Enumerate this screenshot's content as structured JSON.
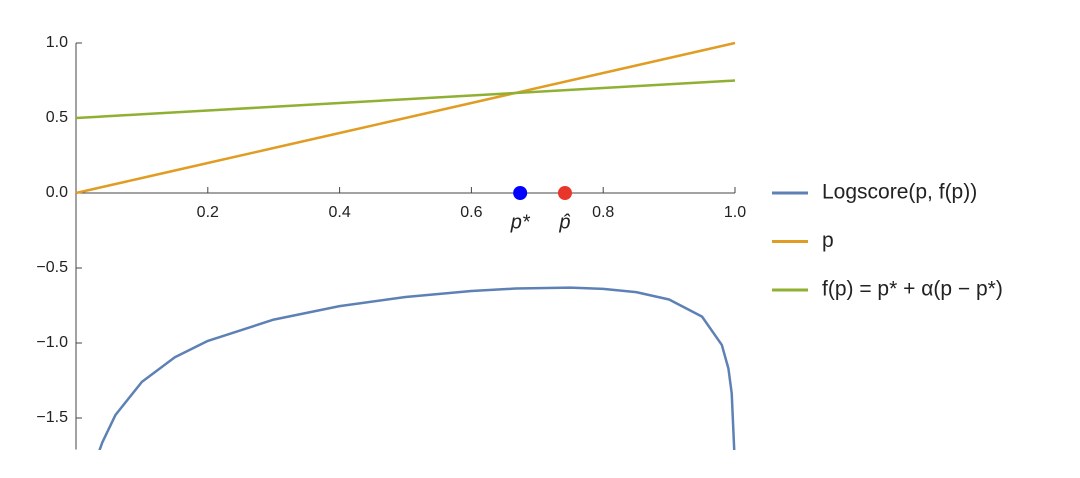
{
  "chart_data": {
    "type": "line",
    "x": [
      0,
      0.035,
      0.04,
      0.06,
      0.1,
      0.15,
      0.2,
      0.3,
      0.4,
      0.5,
      0.6,
      0.667,
      0.75,
      0.8,
      0.85,
      0.9,
      0.95,
      0.98,
      0.99,
      0.995,
      0.999,
      1
    ],
    "series": [
      {
        "name": "Logscore(p, f(p))",
        "color": "#5e81b5",
        "values": [
          null,
          -1.723,
          -1.662,
          -1.479,
          -1.259,
          -1.095,
          -0.986,
          -0.844,
          -0.754,
          -0.693,
          -0.653,
          -0.637,
          -0.631,
          -0.639,
          -0.661,
          -0.71,
          -0.824,
          -1.013,
          -1.17,
          -1.335,
          -1.73,
          null
        ]
      },
      {
        "name": "p",
        "color": "#e19c24",
        "values": [
          0,
          0.035,
          0.04,
          0.06,
          0.1,
          0.15,
          0.2,
          0.3,
          0.4,
          0.5,
          0.6,
          0.667,
          0.75,
          0.8,
          0.85,
          0.9,
          0.95,
          0.98,
          0.99,
          0.995,
          0.999,
          1
        ]
      },
      {
        "name": "f(p) = p* + α(p − p*)",
        "color": "#8fb032",
        "values": [
          0.5,
          0.50875,
          0.51,
          0.515,
          0.525,
          0.5375,
          0.55,
          0.575,
          0.6,
          0.625,
          0.65,
          0.66675,
          0.6875,
          0.7,
          0.7125,
          0.725,
          0.7375,
          0.745,
          0.7475,
          0.74875,
          0.74975,
          0.75
        ]
      }
    ],
    "points": [
      {
        "x": 0.674,
        "y": 0,
        "color": "#0000ff",
        "label": "p*"
      },
      {
        "x": 0.742,
        "y": 0,
        "color": "#e8362a",
        "label": "p̂"
      }
    ],
    "xlim": [
      0,
      1
    ],
    "ylim": [
      -1.71,
      1.0
    ],
    "xticks": [
      0.2,
      0.4,
      0.6,
      0.8,
      {
        "value": 1,
        "label": "1.0"
      }
    ],
    "yticks": [
      {
        "value": 1,
        "label": "1.0"
      },
      0.5,
      {
        "value": 0,
        "label": "0.0"
      },
      {
        "value": -0.5,
        "label": "−0.5"
      },
      {
        "value": -1,
        "label": "−1.0"
      },
      {
        "value": -1.5,
        "label": "−1.5"
      }
    ],
    "legend": "right"
  }
}
